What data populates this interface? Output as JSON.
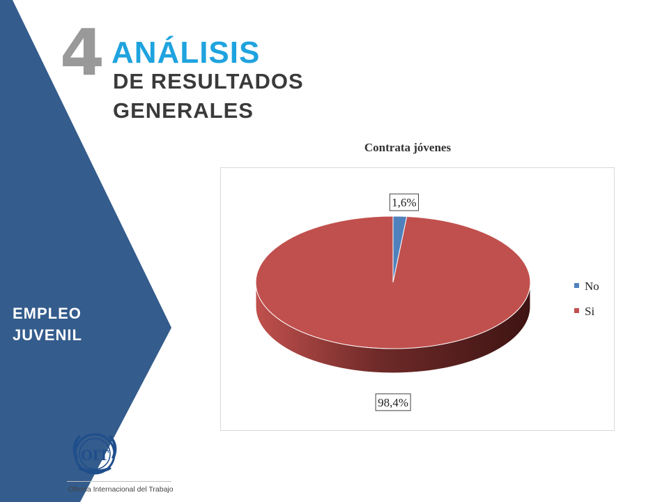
{
  "header": {
    "section_number": "4",
    "title_line1": "ANÁLISIS",
    "title_line2": "DE RESULTADOS",
    "title_line3": "GENERALES"
  },
  "sidebar": {
    "label_line1": "EMPLEO",
    "label_line2": "JUVENIL"
  },
  "logo": {
    "mark_text": "OIT",
    "caption": "Oficina Internacional del Trabajo"
  },
  "colors": {
    "sidebar_blue": "#345c8c",
    "accent_blue": "#1fa3df",
    "slice_no": "#4f81bd",
    "slice_si": "#c0504d"
  },
  "chart_data": {
    "type": "pie",
    "title": "Contrata jóvenes",
    "three_d": true,
    "categories": [
      "No",
      "Si"
    ],
    "values": [
      1.6,
      98.4
    ],
    "data_labels": [
      "1,6%",
      "98,4%"
    ],
    "legend_placement": "right"
  }
}
